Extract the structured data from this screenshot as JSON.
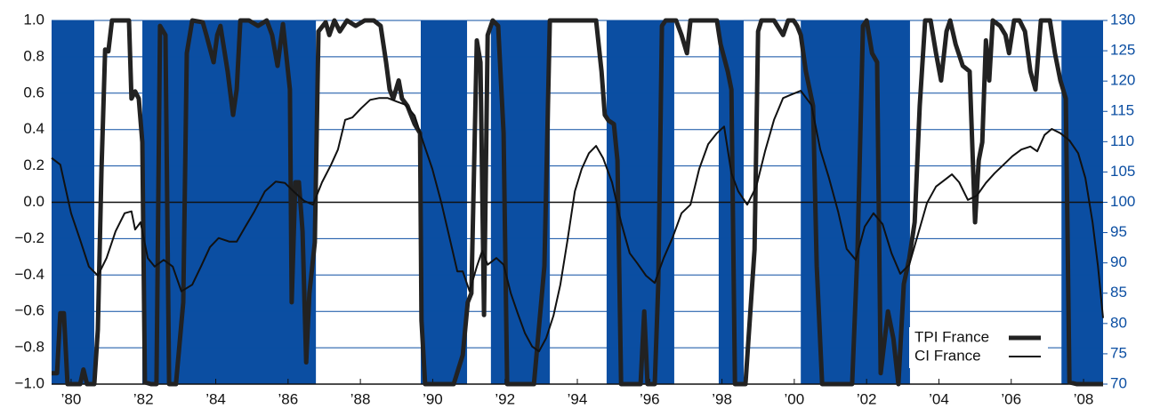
{
  "chart_data": {
    "type": "line",
    "xlim": [
      1979.46,
      2008.54
    ],
    "ylim": [
      -1,
      1
    ],
    "y2lim": [
      70,
      130
    ],
    "xticks": [
      {
        "value": 1980,
        "label": "’80"
      },
      {
        "value": 1982,
        "label": "’82"
      },
      {
        "value": 1984,
        "label": "’84"
      },
      {
        "value": 1986,
        "label": "’86"
      },
      {
        "value": 1988,
        "label": "’88"
      },
      {
        "value": 1990,
        "label": "’90"
      },
      {
        "value": 1992,
        "label": "’92"
      },
      {
        "value": 1994,
        "label": "’94"
      },
      {
        "value": 1996,
        "label": "’96"
      },
      {
        "value": 1998,
        "label": "’98"
      },
      {
        "value": 2000,
        "label": "’00"
      },
      {
        "value": 2002,
        "label": "’02"
      },
      {
        "value": 2004,
        "label": "’04"
      },
      {
        "value": 2006,
        "label": "’06"
      },
      {
        "value": 2008,
        "label": "’08"
      }
    ],
    "yticks": [
      {
        "value": 1,
        "label": "1.0"
      },
      {
        "value": 0.8,
        "label": "0.8"
      },
      {
        "value": 0.6,
        "label": "0.6"
      },
      {
        "value": 0.4,
        "label": "0.4"
      },
      {
        "value": 0.2,
        "label": "0.2"
      },
      {
        "value": 0,
        "label": "0.0"
      },
      {
        "value": -0.2,
        "label": "−0.2"
      },
      {
        "value": -0.4,
        "label": "−0.4"
      },
      {
        "value": -0.6,
        "label": "−0.6"
      },
      {
        "value": -0.8,
        "label": "−0.8"
      },
      {
        "value": -1,
        "label": "−1.0"
      }
    ],
    "y2ticks": [
      130,
      125,
      120,
      115,
      110,
      105,
      100,
      95,
      90,
      85,
      80,
      75,
      70
    ],
    "grid": true,
    "shade_color": "#0b4ea2",
    "shaded_periods": [
      [
        1979.46,
        1980.64
      ],
      [
        1981.97,
        1986.77
      ],
      [
        1989.67,
        1990.95
      ],
      [
        1991.61,
        1993.24
      ],
      [
        1994.81,
        1996.68
      ],
      [
        1997.91,
        1998.6
      ],
      [
        2000.18,
        2003.2
      ],
      [
        2007.39,
        2008.54
      ]
    ],
    "legend": "lower right",
    "series": [
      {
        "name": "TPI France",
        "color": "#222222",
        "line_width": 5,
        "x": [
          1979.46,
          1979.61,
          1979.7,
          1979.8,
          1979.9,
          1980.25,
          1980.34,
          1980.44,
          1980.64,
          1980.74,
          1980.84,
          1980.94,
          1981.03,
          1981.13,
          1981.6,
          1981.67,
          1981.77,
          1981.87,
          1981.97,
          1982.04,
          1982.21,
          1982.36,
          1982.46,
          1982.61,
          1982.71,
          1982.9,
          1983.1,
          1983.2,
          1983.35,
          1983.64,
          1983.74,
          1983.94,
          1984.04,
          1984.13,
          1984.33,
          1984.48,
          1984.58,
          1984.68,
          1984.92,
          1985.17,
          1985.41,
          1985.56,
          1985.71,
          1985.86,
          1986.05,
          1986.1,
          1986.2,
          1986.3,
          1986.4,
          1986.5,
          1986.59,
          1986.74,
          1986.84,
          1987.04,
          1987.14,
          1987.28,
          1987.43,
          1987.63,
          1987.87,
          1988.12,
          1988.37,
          1988.56,
          1988.71,
          1988.81,
          1988.91,
          1989.06,
          1989.15,
          1989.3,
          1989.5,
          1989.65,
          1989.69,
          1989.79,
          1989.89,
          1990.09,
          1990.58,
          1990.83,
          1990.97,
          1991.07,
          1991.22,
          1991.32,
          1991.42,
          1991.52,
          1991.66,
          1991.81,
          1991.96,
          1992.06,
          1992.3,
          1992.8,
          1993.09,
          1993.24,
          1993.78,
          1994.27,
          1994.52,
          1994.67,
          1994.76,
          1994.86,
          1995.01,
          1995.11,
          1995.21,
          1995.75,
          1995.85,
          1995.94,
          1996.14,
          1996.24,
          1996.34,
          1996.44,
          1996.73,
          1996.88,
          1997.03,
          1997.13,
          1997.47,
          1997.72,
          1997.86,
          1997.96,
          1998.16,
          1998.26,
          1998.36,
          1998.65,
          1998.9,
          1999.0,
          1999.09,
          1999.44,
          1999.69,
          1999.83,
          1999.98,
          2000.08,
          2000.18,
          2000.32,
          2000.52,
          2000.62,
          2000.77,
          2001.16,
          2001.6,
          2001.75,
          2001.9,
          2002.0,
          2002.15,
          2002.29,
          2002.39,
          2002.59,
          2002.74,
          2002.88,
          2003.03,
          2003.18,
          2003.33,
          2003.47,
          2003.62,
          2003.77,
          2003.92,
          2004.06,
          2004.21,
          2004.31,
          2004.46,
          2004.66,
          2004.85,
          2005.0,
          2005.1,
          2005.2,
          2005.3,
          2005.39,
          2005.49,
          2005.69,
          2005.84,
          2005.94,
          2006.08,
          2006.23,
          2006.38,
          2006.53,
          2006.67,
          2006.82,
          2007.07,
          2007.21,
          2007.36,
          2007.51,
          2007.61,
          2007.81,
          2008.54
        ],
        "values": [
          -0.94,
          -0.94,
          -0.61,
          -0.61,
          -1,
          -1,
          -0.92,
          -1,
          -1,
          -0.7,
          0.18,
          0.84,
          0.83,
          1,
          1,
          0.57,
          0.61,
          0.57,
          0.33,
          -0.99,
          -1,
          -1,
          0.97,
          0.92,
          -1,
          -1,
          -0.55,
          0.82,
          1,
          0.99,
          0.92,
          0.77,
          0.92,
          0.97,
          0.72,
          0.48,
          0.62,
          1,
          1,
          0.97,
          1,
          0.92,
          0.75,
          0.98,
          0.62,
          -0.55,
          0.11,
          0.11,
          -0.16,
          -0.88,
          -0.5,
          -0.22,
          0.94,
          0.99,
          0.92,
          1,
          0.94,
          1,
          0.97,
          1,
          1,
          0.97,
          0.77,
          0.62,
          0.57,
          0.67,
          0.57,
          0.53,
          0.43,
          0.38,
          -0.65,
          -1,
          -1,
          -1,
          -1,
          -0.84,
          -0.55,
          -0.5,
          0.89,
          0.77,
          -0.62,
          0.92,
          1,
          0.97,
          0.38,
          -1,
          -1,
          -1,
          -0.35,
          1,
          1,
          1,
          1,
          0.72,
          0.48,
          0.45,
          0.43,
          0.23,
          -1,
          -1,
          -0.6,
          -1,
          -1,
          -0.45,
          0.97,
          1,
          1,
          0.92,
          0.82,
          1,
          1,
          1,
          1,
          0.87,
          0.72,
          0.62,
          -1,
          -1,
          -0.26,
          0.94,
          1,
          1,
          0.92,
          1,
          1,
          0.97,
          0.92,
          0.72,
          0.53,
          -0.35,
          -1,
          -1,
          -1,
          -0.26,
          0.97,
          1,
          0.82,
          0.77,
          -0.94,
          -0.6,
          -0.75,
          -1,
          -0.45,
          -0.31,
          -0.11,
          0.53,
          1,
          1,
          0.82,
          0.67,
          0.94,
          1,
          0.87,
          0.75,
          0.72,
          -0.11,
          0.23,
          0.33,
          0.89,
          0.67,
          1,
          0.97,
          0.92,
          0.82,
          1,
          1,
          0.94,
          0.72,
          0.62,
          1,
          1,
          0.82,
          0.67,
          0.57,
          -0.99,
          -1,
          -1
        ]
      },
      {
        "name": "CI France",
        "color": "#111111",
        "line_width": 2,
        "axis": "y2",
        "x": [
          1979.46,
          1979.7,
          1980.0,
          1980.25,
          1980.49,
          1980.74,
          1980.98,
          1981.23,
          1981.48,
          1981.67,
          1981.77,
          1981.92,
          1982.12,
          1982.31,
          1982.56,
          1982.81,
          1983.05,
          1983.35,
          1983.59,
          1983.84,
          1984.08,
          1984.38,
          1984.58,
          1984.82,
          1985.07,
          1985.36,
          1985.66,
          1985.91,
          1986.15,
          1986.45,
          1986.69,
          1986.94,
          1987.19,
          1987.38,
          1987.58,
          1987.78,
          1988.02,
          1988.27,
          1988.51,
          1988.76,
          1989.01,
          1989.25,
          1989.5,
          1989.74,
          1989.99,
          1990.24,
          1990.48,
          1990.68,
          1990.83,
          1991.02,
          1991.22,
          1991.37,
          1991.52,
          1991.76,
          1991.96,
          1992.16,
          1992.35,
          1992.55,
          1992.75,
          1992.94,
          1993.14,
          1993.34,
          1993.53,
          1993.73,
          1993.93,
          1994.12,
          1994.32,
          1994.52,
          1994.71,
          1994.96,
          1995.21,
          1995.45,
          1995.65,
          1995.9,
          1996.14,
          1996.39,
          1996.63,
          1996.88,
          1997.13,
          1997.37,
          1997.62,
          1997.86,
          1998.06,
          1998.26,
          1998.45,
          1998.7,
          1998.95,
          1999.19,
          1999.44,
          1999.69,
          1999.93,
          2000.18,
          2000.47,
          2000.72,
          2000.96,
          2001.21,
          2001.45,
          2001.7,
          2001.95,
          2002.19,
          2002.44,
          2002.69,
          2002.93,
          2003.18,
          2003.43,
          2003.67,
          2003.92,
          2004.16,
          2004.36,
          2004.56,
          2004.8,
          2005.05,
          2005.3,
          2005.54,
          2005.79,
          2006.03,
          2006.28,
          2006.53,
          2006.72,
          2006.92,
          2007.12,
          2007.36,
          2007.61,
          2007.85,
          2008.05,
          2008.25,
          2008.4,
          2008.54
        ],
        "values": [
          107.3,
          106.2,
          98.2,
          93.8,
          89.4,
          87.9,
          90.8,
          95.2,
          98.2,
          98.5,
          95.5,
          96.7,
          90.8,
          89.4,
          90.5,
          89.4,
          85.3,
          86.4,
          89.4,
          92.6,
          94.1,
          93.5,
          93.5,
          96.0,
          98.5,
          101.8,
          103.4,
          103.2,
          101.8,
          100.2,
          99.6,
          103.3,
          106.2,
          108.7,
          113.6,
          114.0,
          115.5,
          116.9,
          117.2,
          117.2,
          116.6,
          116.1,
          114.3,
          109.9,
          105.5,
          99.9,
          93.8,
          88.6,
          88.6,
          85.3,
          89.4,
          92.0,
          89.7,
          90.8,
          89.7,
          85.0,
          81.7,
          78.4,
          76.2,
          75.4,
          77.6,
          81.3,
          86.4,
          93.8,
          101.8,
          105.5,
          108.1,
          109.3,
          107.3,
          103.3,
          96.7,
          91.6,
          90.0,
          87.9,
          86.7,
          90.8,
          94.1,
          98.2,
          99.6,
          105.5,
          109.6,
          111.4,
          112.5,
          104.8,
          101.8,
          99.6,
          102.6,
          108.4,
          113.6,
          117.2,
          117.8,
          118.4,
          116.1,
          108.7,
          104.0,
          98.5,
          92.3,
          90.5,
          96.0,
          98.2,
          96.4,
          91.6,
          88.2,
          89.7,
          94.9,
          99.9,
          102.6,
          103.7,
          104.6,
          103.3,
          100.4,
          101.1,
          103.2,
          104.8,
          106.2,
          107.6,
          108.7,
          109.2,
          108.4,
          111.1,
          112.1,
          111.4,
          110.2,
          108.1,
          104.0,
          96.7,
          89.4,
          80.9
        ]
      }
    ]
  }
}
